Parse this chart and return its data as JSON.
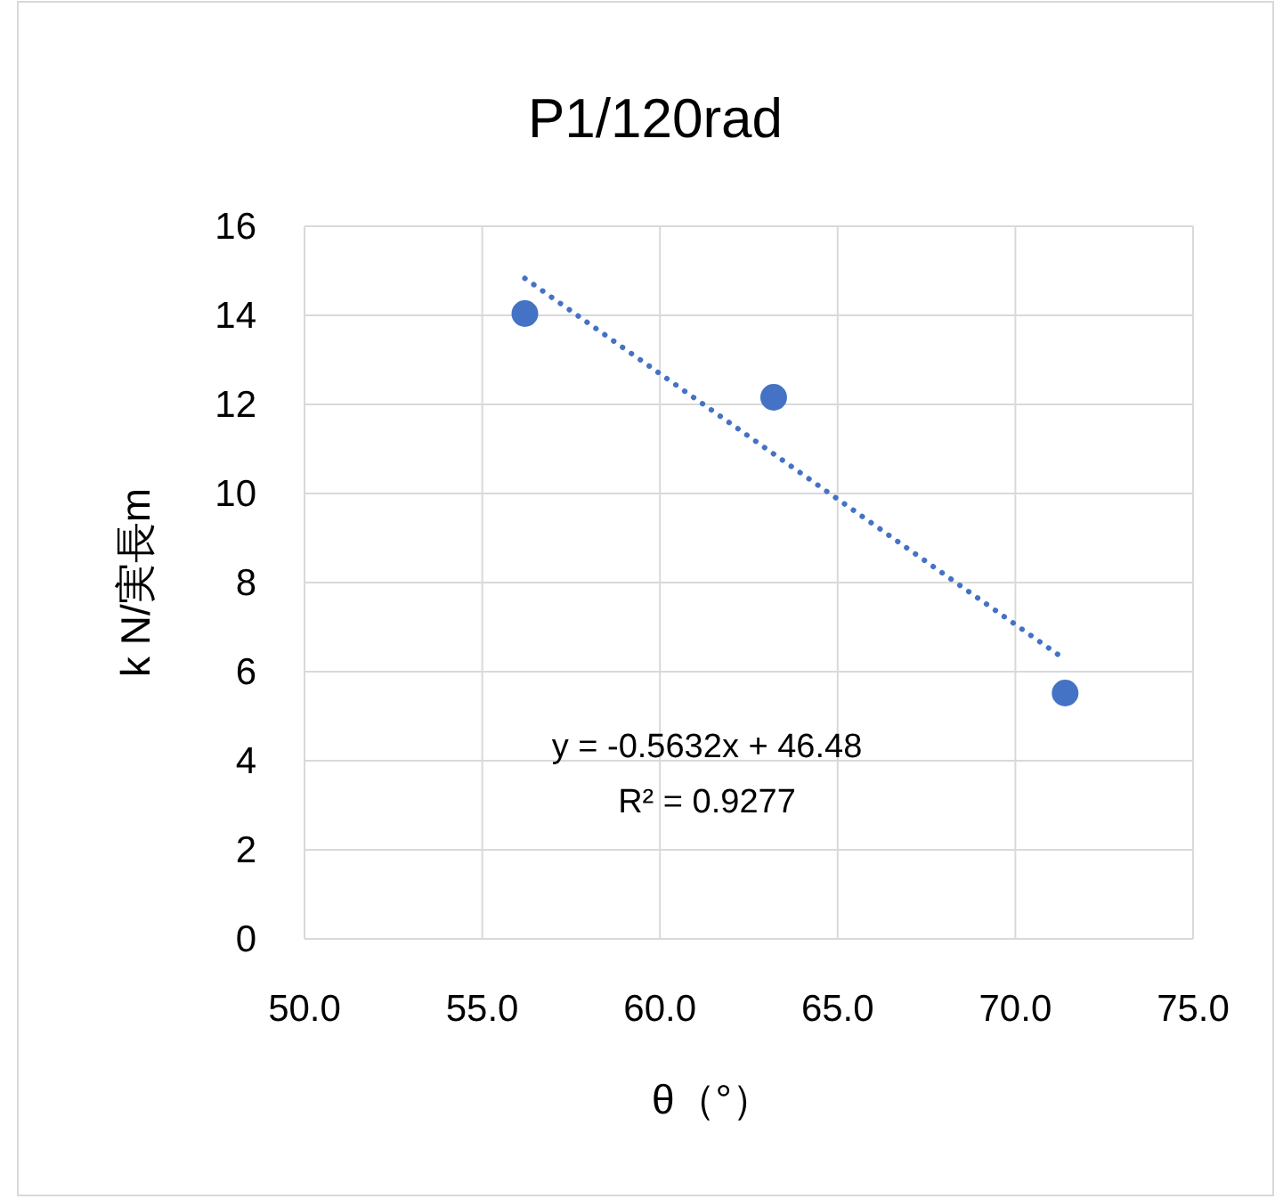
{
  "chart_data": {
    "type": "scatter",
    "title": "P1/120rad",
    "xlabel": "θ（°）",
    "ylabel": "k N/実長m",
    "xlim": [
      50,
      75
    ],
    "xticks": [
      {
        "value": 50,
        "label": "50.0"
      },
      {
        "value": 55,
        "label": "55.0"
      },
      {
        "value": 60,
        "label": "60.0"
      },
      {
        "value": 65,
        "label": "65.0"
      },
      {
        "value": 70,
        "label": "70.0"
      },
      {
        "value": 75,
        "label": "75.0"
      }
    ],
    "ylim": [
      0,
      16
    ],
    "yticks": [
      0,
      2,
      4,
      6,
      8,
      10,
      12,
      14,
      16
    ],
    "grid": true,
    "series": [
      {
        "type": "scatter",
        "color": "#4472c4",
        "marker": "circle",
        "x": [
          56.2,
          63.2,
          71.4
        ],
        "values": [
          14.04,
          12.16,
          5.52
        ]
      },
      {
        "type": "line",
        "color": "#4472c4",
        "marker": "none",
        "line_style": "dotted",
        "x": [
          56.2,
          71.4
        ],
        "values": [
          14.83,
          6.27
        ]
      }
    ],
    "annotations": [
      "y = -0.5632x + 46.48",
      "R² = 0.9277"
    ]
  }
}
